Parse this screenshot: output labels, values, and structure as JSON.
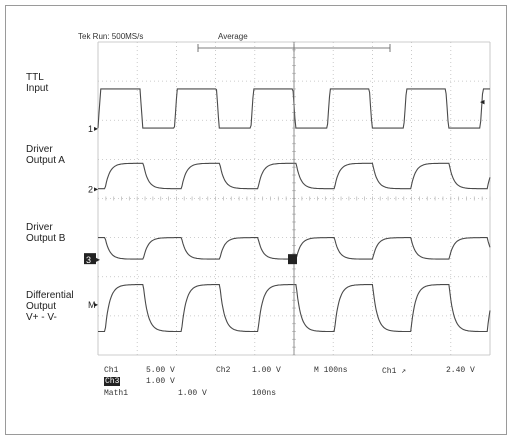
{
  "header": {
    "acq_status": "Tek Run: 500MS/s",
    "acq_mode": "Average"
  },
  "channel_labels": [
    [
      "TTL",
      "Input"
    ],
    [
      "Driver",
      "Output A"
    ],
    [
      "Driver",
      "Output B"
    ],
    [
      "Differential",
      "Output",
      "V+ - V-"
    ]
  ],
  "markers": {
    "ch1": "1",
    "ch2": "2",
    "ch3": "3",
    "math": "M"
  },
  "readout": {
    "ch1_name": "Ch1",
    "ch1_scale": "5.00 V",
    "ch2_name": "Ch2",
    "ch2_scale": "1.00 V",
    "timebase": "M 100ns",
    "trigger": "Ch1 ↗",
    "trigger_level": "2.40 V",
    "ch3_name": "Ch3",
    "ch3_scale": "1.00 V",
    "math_name": "Math1",
    "math_scale": "1.00 V",
    "math_time": "100ns"
  },
  "colors": {
    "trace": "#4a4a4a",
    "grid": "#bdbdbd",
    "background": "#ffffff"
  },
  "chart_data": {
    "type": "line",
    "title": "",
    "xlabel": "",
    "ylabel": "",
    "grid": true,
    "x_divisions": 10,
    "y_divisions": 8,
    "x_unit_per_div": "100ns",
    "xlim": [
      0,
      1000
    ],
    "period": 195,
    "series": [
      {
        "name": "TTL Input",
        "baseline_div": 5.8,
        "amplitude_div": 1.0,
        "shape": "square",
        "phase": 0,
        "duty": 0.55
      },
      {
        "name": "Driver Output A",
        "baseline_div": 4.25,
        "amplitude_div": 0.65,
        "shape": "square-lag",
        "phase": 18,
        "duty": 0.5
      },
      {
        "name": "Driver Output B",
        "baseline_div": 2.45,
        "amplitude_div": 0.55,
        "shape": "inverted-lag",
        "phase": 18,
        "duty": 0.5
      },
      {
        "name": "V+ - V-",
        "baseline_div": 0.6,
        "amplitude_div": 1.2,
        "shape": "differential",
        "phase": 18,
        "duty": 0.5
      }
    ]
  }
}
